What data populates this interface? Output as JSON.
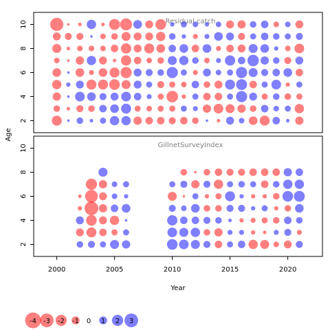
{
  "chart_data": {
    "type": "scatter",
    "subtype": "bubble",
    "xlabel": "Year",
    "ylabel": "Age",
    "xticks": [
      2000,
      2005,
      2010,
      2015,
      2020
    ],
    "yticks": [
      2,
      4,
      6,
      8,
      10
    ],
    "xlim": [
      1998,
      2023
    ],
    "colors": {
      "negative": "#ff0000",
      "positive": "#0000ff",
      "opacity": 0.5
    },
    "size_max_abs": 4,
    "legend": {
      "placement": "bottom-left",
      "entries": [
        {
          "label": "-4",
          "value": -4
        },
        {
          "label": "-3",
          "value": -3
        },
        {
          "label": "-2",
          "value": -2
        },
        {
          "label": "-1",
          "value": -1
        },
        {
          "label": "0",
          "value": 0
        },
        {
          "label": "1",
          "value": 1
        },
        {
          "label": "2",
          "value": 2
        },
        {
          "label": "3",
          "value": 3
        }
      ]
    },
    "panels": [
      {
        "title": "Residual catch",
        "ylim": [
          1,
          11
        ],
        "x": [
          2000,
          2001,
          2002,
          2003,
          2004,
          2005,
          2006,
          2007,
          2008,
          2009,
          2010,
          2011,
          2012,
          2013,
          2014,
          2015,
          2016,
          2017,
          2018,
          2019,
          2020,
          2021
        ],
        "ages": [
          2,
          3,
          4,
          5,
          6,
          7,
          8,
          9,
          10
        ],
        "residuals": [
          [
            -1.6,
            -0.7,
            -1.1,
            -1.4,
            -1.2,
            -0.5,
            -1.3,
            -1.0,
            -2.8
          ],
          [
            0.1,
            -0.2,
            0.1,
            0.3,
            0.1,
            -0.1,
            -0.2,
            -0.8,
            -0.1
          ],
          [
            0.7,
            -0.8,
            1.5,
            1.0,
            -1.2,
            -1.1,
            -0.5,
            -0.8,
            -0.2
          ],
          [
            0.2,
            -0.7,
            1.2,
            -1.6,
            -0.4,
            1.4,
            -0.5,
            0.1,
            1.4
          ],
          [
            0.6,
            0.9,
            0.8,
            -1.6,
            -1.2,
            -1.0,
            -0.5,
            -0.5,
            -0.2
          ],
          [
            1.4,
            1.2,
            1.0,
            -1.8,
            -1.6,
            -0.2,
            -0.9,
            -0.7,
            -1.9
          ],
          [
            1.4,
            1.6,
            1.5,
            -1.3,
            -2.0,
            -1.7,
            -1.7,
            -1.3,
            -2.3
          ],
          [
            -1.1,
            -0.6,
            0.9,
            1.0,
            1.0,
            -0.9,
            -1.0,
            -1.0,
            1.2
          ],
          [
            -0.9,
            -0.5,
            0.4,
            0.6,
            0.8,
            -0.5,
            -1.6,
            -1.0,
            -1.0
          ],
          [
            -0.9,
            -0.6,
            -0.6,
            -0.8,
            0.7,
            -0.7,
            -1.2,
            -1.4,
            -1.8
          ],
          [
            -0.8,
            -0.6,
            -2.1,
            -0.6,
            2.0,
            1.3,
            0.9,
            0.7,
            0.3
          ],
          [
            -0.9,
            0.6,
            -0.3,
            -0.5,
            0.6,
            1.4,
            1.2,
            0.3,
            0.6
          ],
          [
            -0.7,
            0.4,
            0.6,
            0.9,
            -0.4,
            0.7,
            -0.9,
            -0.4,
            0.5
          ],
          [
            0.1,
            -1.1,
            -0.9,
            -0.7,
            1.0,
            -0.5,
            1.2,
            0.4,
            0.3
          ],
          [
            -0.2,
            -1.5,
            -0.9,
            -1.0,
            0.5,
            0.4,
            -0.4,
            1.2,
            0.5
          ],
          [
            1.0,
            -1.3,
            0.6,
            1.6,
            0.6,
            1.7,
            -0.9,
            1.0,
            -1.0
          ],
          [
            0.5,
            -1.1,
            2.0,
            1.9,
            2.0,
            0.9,
            -1.0,
            -0.8,
            -1.1
          ],
          [
            -1.2,
            -0.7,
            1.0,
            -0.9,
            1.3,
            2.1,
            1.3,
            0.6,
            0.7
          ],
          [
            -1.6,
            0.9,
            -0.6,
            0.6,
            0.8,
            1.1,
            1.2,
            0.9,
            0.9
          ],
          [
            0.9,
            0.5,
            0.7,
            1.5,
            0.9,
            0.7,
            0.3,
            0.7,
            -0.5
          ],
          [
            0.2,
            0.6,
            -0.7,
            -0.3,
            1.2,
            -0.8,
            -0.5,
            0.6,
            0.5
          ],
          [
            -1.1,
            -1.4,
            -0.6,
            0.6,
            -0.9,
            1.0,
            -1.5,
            0.8,
            -1.0
          ]
        ]
      },
      {
        "title": "GillnetSurveyIndex",
        "ylim": [
          1,
          11
        ],
        "x": [
          2002,
          2003,
          2004,
          2005,
          2006,
          2010,
          2011,
          2012,
          2013,
          2014,
          2015,
          2016,
          2017,
          2018,
          2019,
          2020,
          2021
        ],
        "ages": [
          2,
          3,
          4,
          5,
          6,
          7,
          8
        ],
        "residuals": [
          [
            0.7,
            -1.0,
            1.0,
            -0.3,
            -0.2,
            0.0,
            0.0
          ],
          [
            0.8,
            -1.6,
            -1.8,
            -3.0,
            -2.6,
            -2.0,
            0.0
          ],
          [
            0.6,
            -0.9,
            -1.0,
            -1.1,
            -1.0,
            -1.1,
            1.3
          ],
          [
            1.3,
            -0.6,
            -1.4,
            0.9,
            0.5,
            0.5,
            0.0
          ],
          [
            1.1,
            0.6,
            0.1,
            1.2,
            0.3,
            0.6,
            0.0
          ],
          [
            1.8,
            1.5,
            1.7,
            0.8,
            -1.3,
            0.6,
            0.0
          ],
          [
            1.5,
            1.3,
            0.9,
            0.5,
            -0.1,
            0.8,
            -0.7
          ],
          [
            1.3,
            1.4,
            0.9,
            1.2,
            0.6,
            -1.1,
            -0.1
          ],
          [
            0.8,
            -0.7,
            0.8,
            -0.7,
            -0.3,
            0.8,
            -0.7
          ],
          [
            -0.9,
            -1.1,
            0.7,
            -0.7,
            -0.6,
            -1.4,
            -0.9
          ],
          [
            0.6,
            0.4,
            0.2,
            0.8,
            1.6,
            0.6,
            -0.8
          ],
          [
            0.9,
            0.4,
            -0.3,
            0.8,
            0.3,
            0.7,
            -0.8
          ],
          [
            -1.4,
            -0.3,
            -0.4,
            0.3,
            -0.3,
            0.6,
            -0.9
          ],
          [
            -1.3,
            -0.2,
            -0.6,
            0.6,
            -0.3,
            -0.9,
            -0.9
          ],
          [
            -0.5,
            0.4,
            -0.7,
            -0.3,
            -0.7,
            0.7,
            -0.9
          ],
          [
            -1.0,
            0.8,
            0.9,
            -0.7,
            1.8,
            1.4,
            1.1
          ],
          [
            0.8,
            -0.4,
            0.7,
            1.2,
            1.9,
            1.4,
            0.9
          ]
        ]
      }
    ]
  }
}
